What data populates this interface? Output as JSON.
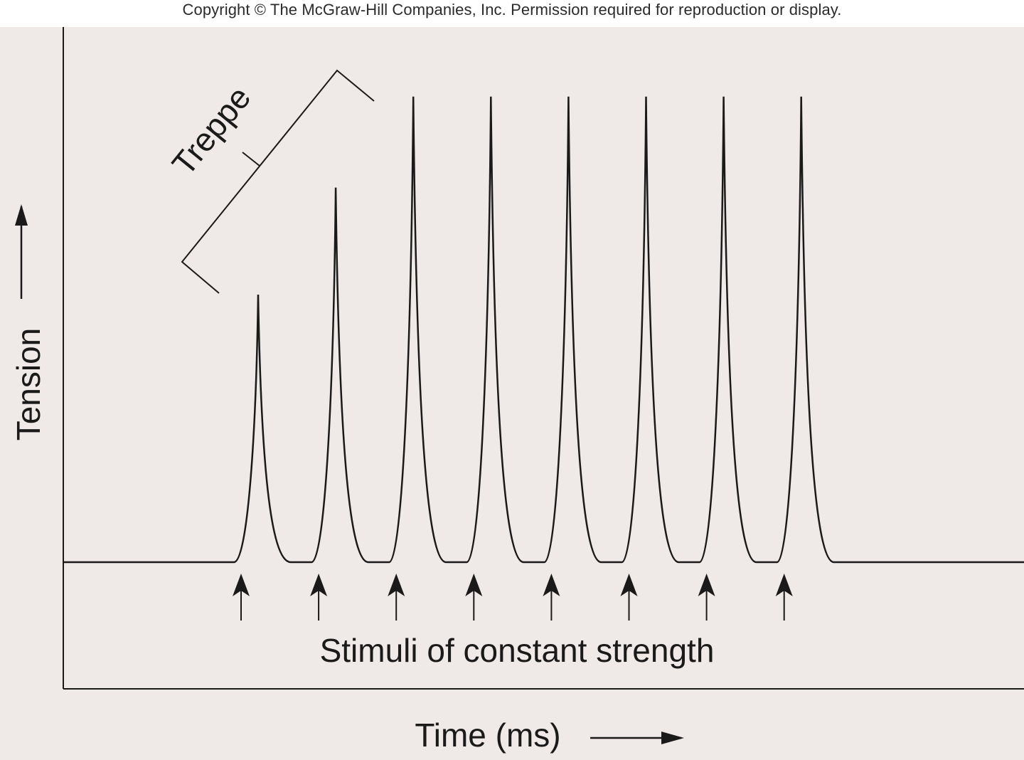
{
  "copyright": "Copyright © The McGraw-Hill Companies, Inc. Permission required for reproduction or display.",
  "colors": {
    "panel_background": "#efe9e8",
    "ink": "#1a1a1a"
  },
  "labels": {
    "y_axis": "Tension",
    "x_axis": "Time (ms)",
    "stimuli": "Stimuli of constant strength",
    "bracket": "Treppe"
  },
  "chart_data": {
    "type": "line",
    "x_label": "Time (ms)",
    "y_label": "Tension",
    "twitch_peaks_relative": [
      0.5,
      0.7,
      0.87,
      0.87,
      0.87,
      0.87,
      0.87,
      0.87
    ],
    "stimulus_count": 8,
    "annotation": "Treppe",
    "ticks": "none"
  }
}
